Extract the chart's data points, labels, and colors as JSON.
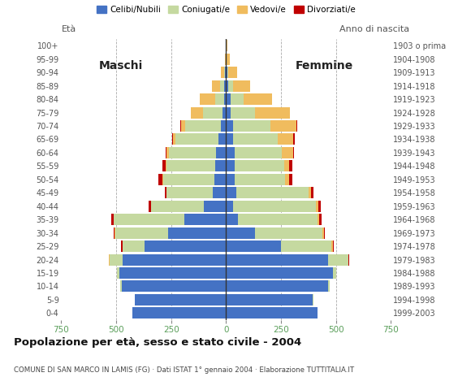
{
  "age_groups": [
    "0-4",
    "5-9",
    "10-14",
    "15-19",
    "20-24",
    "25-29",
    "30-34",
    "35-39",
    "40-44",
    "45-49",
    "50-54",
    "55-59",
    "60-64",
    "65-69",
    "70-74",
    "75-79",
    "80-84",
    "85-89",
    "90-94",
    "95-99",
    "100+"
  ],
  "birth_years": [
    "1999-2003",
    "1994-1998",
    "1989-1993",
    "1984-1988",
    "1979-1983",
    "1974-1978",
    "1969-1973",
    "1964-1968",
    "1959-1963",
    "1954-1958",
    "1949-1953",
    "1944-1948",
    "1939-1943",
    "1934-1938",
    "1929-1933",
    "1924-1928",
    "1919-1923",
    "1914-1918",
    "1909-1913",
    "1904-1908",
    "1903 o prima"
  ],
  "male_celibe": [
    425,
    415,
    475,
    485,
    470,
    370,
    265,
    190,
    100,
    60,
    55,
    50,
    45,
    35,
    25,
    15,
    10,
    8,
    5,
    2,
    2
  ],
  "male_coniugato": [
    0,
    2,
    5,
    10,
    60,
    100,
    240,
    320,
    240,
    210,
    230,
    220,
    215,
    195,
    160,
    90,
    40,
    20,
    5,
    0,
    0
  ],
  "male_vedovo": [
    0,
    0,
    0,
    0,
    2,
    2,
    2,
    2,
    3,
    3,
    5,
    5,
    10,
    10,
    20,
    55,
    70,
    35,
    15,
    2,
    0
  ],
  "male_divorziato": [
    0,
    0,
    0,
    0,
    2,
    5,
    5,
    12,
    10,
    5,
    18,
    15,
    5,
    5,
    5,
    0,
    0,
    0,
    0,
    0,
    0
  ],
  "female_celibe": [
    415,
    395,
    465,
    485,
    465,
    250,
    130,
    55,
    30,
    45,
    40,
    40,
    40,
    30,
    30,
    20,
    20,
    10,
    5,
    2,
    2
  ],
  "female_coniugato": [
    0,
    2,
    5,
    15,
    90,
    230,
    310,
    360,
    380,
    330,
    230,
    225,
    215,
    205,
    170,
    110,
    60,
    20,
    5,
    0,
    0
  ],
  "female_vedovo": [
    0,
    0,
    0,
    2,
    3,
    5,
    5,
    8,
    8,
    10,
    15,
    20,
    50,
    70,
    120,
    160,
    130,
    80,
    40,
    15,
    5
  ],
  "female_divorziato": [
    0,
    0,
    0,
    0,
    3,
    5,
    5,
    10,
    12,
    12,
    18,
    15,
    5,
    8,
    5,
    0,
    0,
    0,
    0,
    0,
    0
  ],
  "colors": {
    "celibe": "#4472c4",
    "coniugato": "#c5d9a0",
    "vedovo": "#f0bc5e",
    "divorziato": "#c00000"
  },
  "xlim": 750,
  "title": "Popolazione per età, sesso e stato civile - 2004",
  "subtitle": "COMUNE DI SAN MARCO IN LAMIS (FG) · Dati ISTAT 1° gennaio 2004 · Elaborazione TUTTITALIA.IT",
  "ylabel_left": "Età",
  "ylabel_right": "Anno di nascita",
  "label_maschi": "Maschi",
  "label_femmine": "Femmine",
  "legend_labels": [
    "Celibi/Nubili",
    "Coniugati/e",
    "Vedovi/e",
    "Divorziati/e"
  ],
  "bg_color": "#ffffff",
  "grid_color": "#aaaaaa",
  "bar_height": 0.85
}
